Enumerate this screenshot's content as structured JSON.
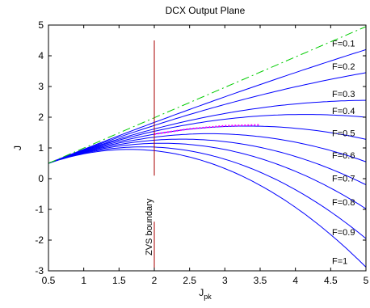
{
  "chart_data": {
    "type": "line",
    "title": "DCX Output Plane",
    "xlabel": "J",
    "xlabel_subscript": "pk",
    "ylabel": "J",
    "xlim": [
      0.5,
      5
    ],
    "ylim": [
      -3,
      5
    ],
    "xticks": [
      "0.5",
      "1",
      "1.5",
      "2",
      "2.5",
      "3",
      "3.5",
      "4",
      "4.5",
      "5"
    ],
    "yticks": [
      "-3",
      "-2",
      "-1",
      "0",
      "1",
      "2",
      "3",
      "4",
      "5"
    ],
    "grid": false,
    "legend": "none",
    "series": [
      {
        "name": "F=0.1",
        "x": [
          0.5,
          5
        ],
        "y": [
          0.5,
          4.2
        ]
      },
      {
        "name": "F=0.2",
        "x": [
          0.5,
          5
        ],
        "y": [
          0.5,
          3.45
        ]
      },
      {
        "name": "F=0.3",
        "x": [
          0.5,
          5
        ],
        "y": [
          0.5,
          2.55
        ]
      },
      {
        "name": "F=0.4",
        "x": [
          0.5,
          5
        ],
        "y": [
          0.5,
          2.0
        ]
      },
      {
        "name": "F=0.5",
        "x": [
          0.5,
          5
        ],
        "y": [
          0.5,
          1.28
        ]
      },
      {
        "name": "F=0.6",
        "x": [
          0.5,
          5
        ],
        "y": [
          0.5,
          0.55
        ]
      },
      {
        "name": "F=0.7",
        "x": [
          0.5,
          5
        ],
        "y": [
          0.5,
          -0.2
        ]
      },
      {
        "name": "F=0.8",
        "x": [
          0.5,
          5
        ],
        "y": [
          0.5,
          -0.98
        ]
      },
      {
        "name": "F=0.9",
        "x": [
          0.5,
          5
        ],
        "y": [
          0.5,
          -1.95
        ]
      },
      {
        "name": "F=1",
        "x": [
          0.5,
          5
        ],
        "y": [
          0.5,
          -2.88
        ]
      }
    ],
    "upper_bound_line": {
      "x": [
        0.5,
        5
      ],
      "y": [
        0.5,
        4.95
      ],
      "color": "#00cc00",
      "style": "dash-dot"
    },
    "zvs_boundary": {
      "label": "ZVS boundary",
      "x": 2,
      "y": [
        -3,
        4.5
      ],
      "color": "#aa0000"
    },
    "dotted_curve": {
      "x": [
        2,
        2.5,
        3,
        3.5
      ],
      "y": [
        1.45,
        1.62,
        1.72,
        1.75
      ],
      "color": "#ff00ff"
    },
    "colors": {
      "curves": "#0000ff",
      "axes": "#000000"
    }
  }
}
